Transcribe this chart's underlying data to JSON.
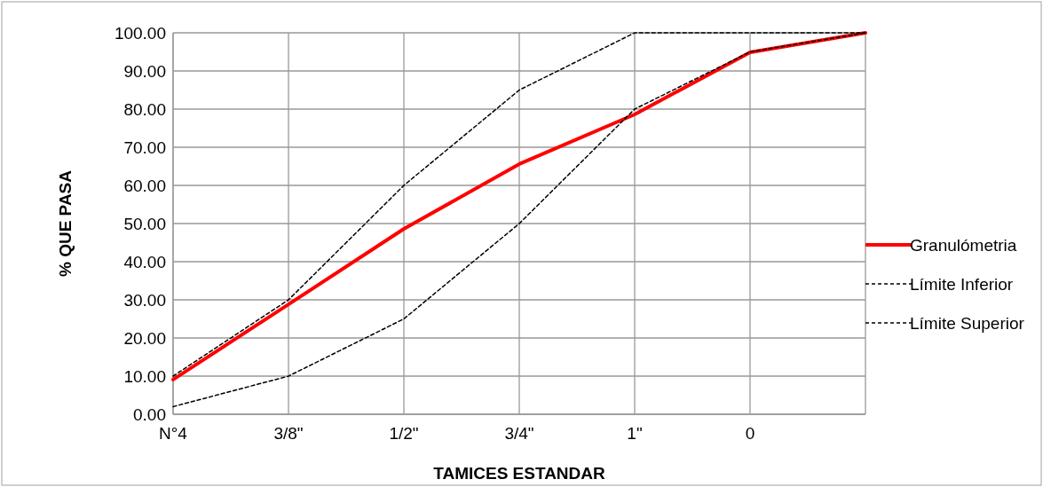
{
  "chart_data": {
    "type": "line",
    "xlabel": "TAMICES ESTANDAR",
    "ylabel": "% QUE PASA",
    "categories": [
      "N°4",
      "3/8\"",
      "1/2\"",
      "3/4\"",
      "1\"",
      "0",
      null
    ],
    "series": [
      {
        "name": "Granulómetria",
        "color": "#ff0000",
        "values": [
          9.1,
          28.8,
          48.6,
          65.6,
          78.6,
          94.9,
          100
        ],
        "line_style": "solid"
      },
      {
        "name": "Límite Inferior",
        "color": "#000000",
        "values": [
          2,
          10,
          25,
          50,
          80,
          95,
          100
        ],
        "line_style": "dashed"
      },
      {
        "name": "Límite Superior",
        "color": "#000000",
        "values": [
          10,
          30,
          60,
          85,
          100,
          100,
          100
        ],
        "line_style": "dashed"
      }
    ],
    "ylim": [
      0,
      100
    ],
    "yticks": [
      {
        "value": 0,
        "label": "0.00"
      },
      {
        "value": 10,
        "label": "10.00"
      },
      {
        "value": 20,
        "label": "20.00"
      },
      {
        "value": 30,
        "label": "30.00"
      },
      {
        "value": 40,
        "label": "40.00"
      },
      {
        "value": 50,
        "label": "50.00"
      },
      {
        "value": 60,
        "label": "60.00"
      },
      {
        "value": 70,
        "label": "70.00"
      },
      {
        "value": 80,
        "label": "80.00"
      },
      {
        "value": 90,
        "label": "90.00"
      },
      {
        "value": 100,
        "label": "100.00"
      }
    ],
    "grid": true,
    "legend": "right",
    "marker": "none"
  }
}
